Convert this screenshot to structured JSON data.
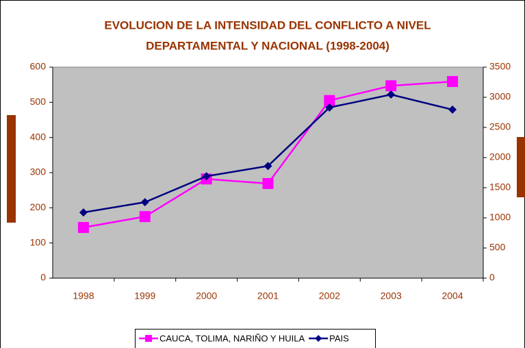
{
  "chart_data": {
    "type": "line",
    "title": [
      "EVOLUCION DE LA INTENSIDAD DEL CONFLICTO A NIVEL",
      "DEPARTAMENTAL Y NACIONAL (1998-2004)"
    ],
    "categories": [
      "1998",
      "1999",
      "2000",
      "2001",
      "2002",
      "2003",
      "2004"
    ],
    "series": [
      {
        "name": "CAUCA, TOLIMA, NARIÑO Y HUILA",
        "color": "#ff00ff",
        "marker": "square",
        "values": [
          144,
          175,
          282,
          269,
          505,
          547,
          559
        ]
      },
      {
        "name": "PAIS",
        "color": "#000080",
        "marker": "diamond",
        "axis": "y2",
        "values": [
          1090,
          1260,
          1690,
          1860,
          2830,
          3045,
          2795
        ]
      }
    ],
    "ylim": [
      0,
      600
    ],
    "yticks": [
      0,
      100,
      200,
      300,
      400,
      500,
      600
    ],
    "y2lim": [
      0,
      3500
    ],
    "y2ticks": [
      0,
      500,
      1000,
      1500,
      2000,
      2500,
      3000,
      3500
    ],
    "plot_background": "#c0c0c0",
    "legend": "bottom"
  }
}
